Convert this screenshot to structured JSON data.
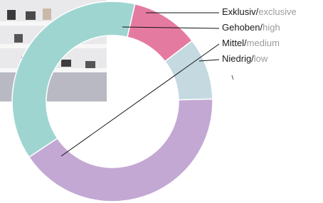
{
  "chart_data": {
    "type": "donut",
    "categories": [
      {
        "main": "Exklusiv/",
        "sub": "exclusive"
      },
      {
        "main": "Niedrig/",
        "sub": "low"
      },
      {
        "main": "Mittel/",
        "sub": "medium"
      },
      {
        "main": "Gehoben/",
        "sub": "high"
      }
    ],
    "values": [
      11,
      10,
      41,
      38
    ],
    "colors": [
      "#e57aa1",
      "#c5d9e1",
      "#c3a8d4",
      "#9fd5d0"
    ]
  }
}
